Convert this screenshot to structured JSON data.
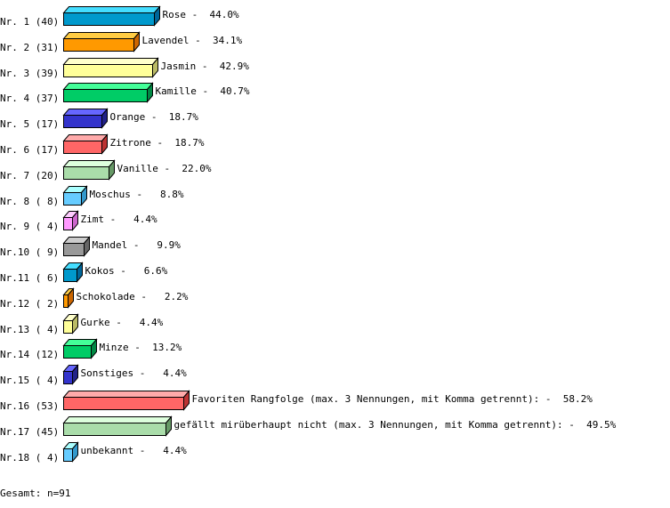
{
  "chart_data": {
    "type": "bar",
    "orientation": "horizontal",
    "style": "3d",
    "grid": false,
    "categories": [
      "Nr. 1",
      "Nr. 2",
      "Nr. 3",
      "Nr. 4",
      "Nr. 5",
      "Nr. 6",
      "Nr. 7",
      "Nr. 8",
      "Nr. 9",
      "Nr.10",
      "Nr.11",
      "Nr.12",
      "Nr.13",
      "Nr.14",
      "Nr.15",
      "Nr.16",
      "Nr.17",
      "Nr.18"
    ],
    "items": [
      {
        "label": "Nr. 1 (40)",
        "count": 40,
        "name": "Rose",
        "percent": 44.0,
        "value_label": "Rose -  44.0%"
      },
      {
        "label": "Nr. 2 (31)",
        "count": 31,
        "name": "Lavendel",
        "percent": 34.1,
        "value_label": "Lavendel -  34.1%"
      },
      {
        "label": "Nr. 3 (39)",
        "count": 39,
        "name": "Jasmin",
        "percent": 42.9,
        "value_label": "Jasmin -  42.9%"
      },
      {
        "label": "Nr. 4 (37)",
        "count": 37,
        "name": "Kamille",
        "percent": 40.7,
        "value_label": "Kamille -  40.7%"
      },
      {
        "label": "Nr. 5 (17)",
        "count": 17,
        "name": "Orange",
        "percent": 18.7,
        "value_label": "Orange -  18.7%"
      },
      {
        "label": "Nr. 6 (17)",
        "count": 17,
        "name": "Zitrone",
        "percent": 18.7,
        "value_label": "Zitrone -  18.7%"
      },
      {
        "label": "Nr. 7 (20)",
        "count": 20,
        "name": "Vanille",
        "percent": 22.0,
        "value_label": "Vanille -  22.0%"
      },
      {
        "label": "Nr. 8 ( 8)",
        "count": 8,
        "name": "Moschus",
        "percent": 8.8,
        "value_label": "Moschus -   8.8%"
      },
      {
        "label": "Nr. 9 ( 4)",
        "count": 4,
        "name": "Zimt",
        "percent": 4.4,
        "value_label": "Zimt -   4.4%"
      },
      {
        "label": "Nr.10 ( 9)",
        "count": 9,
        "name": "Mandel",
        "percent": 9.9,
        "value_label": "Mandel -   9.9%"
      },
      {
        "label": "Nr.11 ( 6)",
        "count": 6,
        "name": "Kokos",
        "percent": 6.6,
        "value_label": "Kokos -   6.6%"
      },
      {
        "label": "Nr.12 ( 2)",
        "count": 2,
        "name": "Schokolade",
        "percent": 2.2,
        "value_label": "Schokolade -   2.2%"
      },
      {
        "label": "Nr.13 ( 4)",
        "count": 4,
        "name": "Gurke",
        "percent": 4.4,
        "value_label": "Gurke -   4.4%"
      },
      {
        "label": "Nr.14 (12)",
        "count": 12,
        "name": "Minze",
        "percent": 13.2,
        "value_label": "Minze -  13.2%"
      },
      {
        "label": "Nr.15 ( 4)",
        "count": 4,
        "name": "Sonstiges",
        "percent": 4.4,
        "value_label": "Sonstiges -   4.4%"
      },
      {
        "label": "Nr.16 (53)",
        "count": 53,
        "name": "Favoriten Rangfolge (max. 3 Nennungen, mit Komma getrennt):",
        "percent": 58.2,
        "value_label": "Favoriten Rangfolge (max. 3 Nennungen, mit Komma getrennt): -  58.2%"
      },
      {
        "label": "Nr.17 (45)",
        "count": 45,
        "name": "gefällt mirüberhaupt nicht (max. 3 Nennungen, mit Komma getrennt):",
        "percent": 49.5,
        "value_label": "gefällt mirüberhaupt nicht (max. 3 Nennungen, mit Komma getrennt): -  49.5%"
      },
      {
        "label": "Nr.18 ( 4)",
        "count": 4,
        "name": "unbekannt",
        "percent": 4.4,
        "value_label": "unbekannt -   4.4%"
      }
    ],
    "palette": [
      {
        "front": "#0099cc",
        "top": "#44ddff",
        "side": "#006699"
      },
      {
        "front": "#ff9900",
        "top": "#ffcc44",
        "side": "#cc6600"
      },
      {
        "front": "#ffff99",
        "top": "#ffffcc",
        "side": "#bbbb66"
      },
      {
        "front": "#00cc66",
        "top": "#44ff99",
        "side": "#008844"
      },
      {
        "front": "#3333cc",
        "top": "#6666ff",
        "side": "#222288"
      },
      {
        "front": "#ff6666",
        "top": "#ffaaaa",
        "side": "#bb3333"
      },
      {
        "front": "#aaddaa",
        "top": "#ddffdd",
        "side": "#669966"
      },
      {
        "front": "#66ccff",
        "top": "#aaffff",
        "side": "#3399cc"
      },
      {
        "front": "#ff99ff",
        "top": "#ffccff",
        "side": "#cc66cc"
      },
      {
        "front": "#999999",
        "top": "#cccccc",
        "side": "#666666"
      }
    ],
    "footer": "Gesamt: n=91"
  }
}
